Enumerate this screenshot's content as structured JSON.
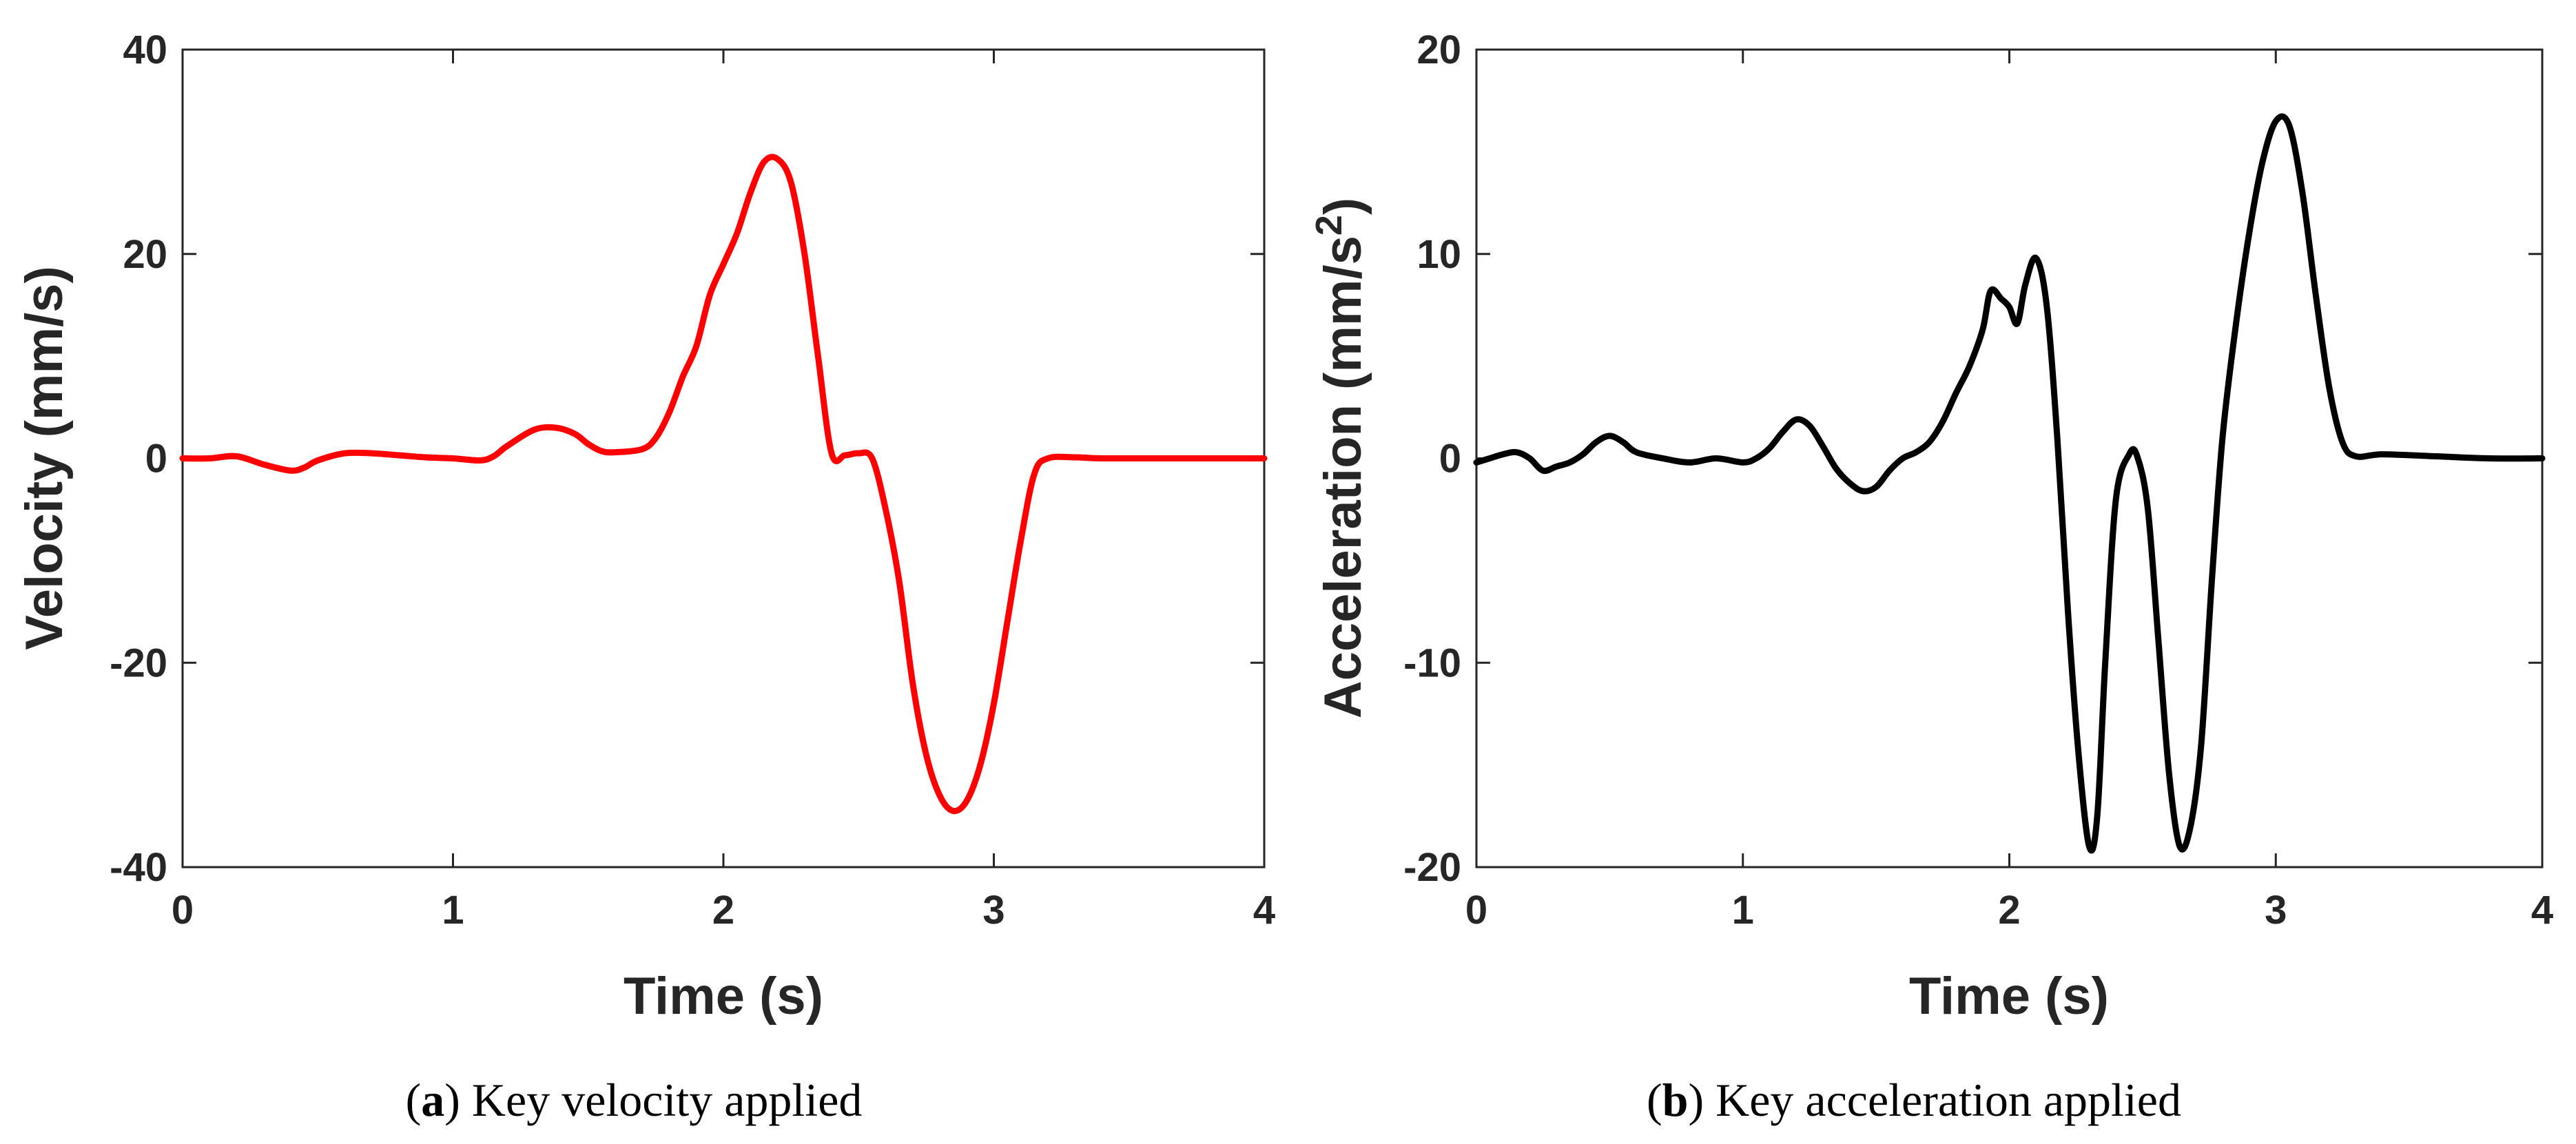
{
  "chart_data": [
    {
      "type": "line",
      "caption_letter": "a",
      "caption_text": "Key velocity applied",
      "xlabel": "Time (s)",
      "ylabel": "Velocity (mm/s)",
      "xlim": [
        0,
        4
      ],
      "ylim": [
        -40,
        40
      ],
      "xticks": [
        0,
        1,
        2,
        3,
        4
      ],
      "yticks": [
        -40,
        -20,
        0,
        20,
        40
      ],
      "grid": false,
      "series": [
        {
          "color": "#ff0000",
          "x": [
            0,
            0.1,
            0.2,
            0.3,
            0.4,
            0.45,
            0.5,
            0.6,
            0.7,
            0.8,
            0.9,
            1.0,
            1.1,
            1.15,
            1.2,
            1.3,
            1.38,
            1.45,
            1.5,
            1.55,
            1.6,
            1.7,
            1.75,
            1.8,
            1.85,
            1.9,
            1.95,
            2.0,
            2.05,
            2.1,
            2.15,
            2.2,
            2.25,
            2.3,
            2.35,
            2.4,
            2.45,
            2.5,
            2.55,
            2.6,
            2.65,
            2.7,
            2.75,
            2.8,
            2.85,
            2.9,
            2.95,
            3.0,
            3.05,
            3.1,
            3.15,
            3.2,
            3.3,
            3.4,
            3.6,
            3.8,
            4.0
          ],
          "y": [
            0,
            0,
            0.2,
            -0.6,
            -1.2,
            -0.9,
            -0.2,
            0.5,
            0.5,
            0.3,
            0.1,
            0.0,
            -0.2,
            0.2,
            1.2,
            2.8,
            3.0,
            2.4,
            1.4,
            0.7,
            0.6,
            0.9,
            2.0,
            4.5,
            8.0,
            11.0,
            16.0,
            19.0,
            22.0,
            26.0,
            29.0,
            29.3,
            27.0,
            20.0,
            10.0,
            0.5,
            0.3,
            0.5,
            0.0,
            -5.0,
            -12.0,
            -22.0,
            -29.0,
            -33.0,
            -34.5,
            -33.5,
            -30.0,
            -24.0,
            -16.0,
            -8.0,
            -1.5,
            0.0,
            0.1,
            0.0,
            0.0,
            0.0,
            0.0
          ]
        }
      ]
    },
    {
      "type": "line",
      "caption_letter": "b",
      "caption_text": "Key acceleration applied",
      "xlabel": "Time (s)",
      "ylabel_main": "Acceleration (mm/s",
      "ylabel_sup": "2",
      "ylabel_end": ")",
      "xlim": [
        0,
        4
      ],
      "ylim": [
        -20,
        20
      ],
      "xticks": [
        0,
        1,
        2,
        3,
        4
      ],
      "yticks": [
        -20,
        -10,
        0,
        10,
        20
      ],
      "grid": false,
      "series": [
        {
          "color": "#000000",
          "x": [
            0,
            0.05,
            0.1,
            0.15,
            0.2,
            0.25,
            0.3,
            0.35,
            0.4,
            0.45,
            0.5,
            0.55,
            0.6,
            0.7,
            0.8,
            0.9,
            1.0,
            1.05,
            1.1,
            1.15,
            1.2,
            1.25,
            1.3,
            1.35,
            1.4,
            1.45,
            1.5,
            1.55,
            1.6,
            1.65,
            1.7,
            1.75,
            1.8,
            1.85,
            1.9,
            1.93,
            1.97,
            2.0,
            2.03,
            2.06,
            2.1,
            2.14,
            2.18,
            2.22,
            2.26,
            2.3,
            2.33,
            2.36,
            2.4,
            2.45,
            2.48,
            2.52,
            2.56,
            2.6,
            2.64,
            2.68,
            2.72,
            2.76,
            2.8,
            2.85,
            2.9,
            2.95,
            3.0,
            3.05,
            3.1,
            3.15,
            3.2,
            3.25,
            3.3,
            3.4,
            3.6,
            3.8,
            4.0
          ],
          "y": [
            -0.2,
            0.0,
            0.2,
            0.3,
            0.0,
            -0.6,
            -0.4,
            -0.2,
            0.2,
            0.8,
            1.1,
            0.8,
            0.3,
            0.0,
            -0.2,
            0.0,
            -0.2,
            0.0,
            0.5,
            1.3,
            1.9,
            1.6,
            0.6,
            -0.5,
            -1.2,
            -1.6,
            -1.4,
            -0.6,
            0.0,
            0.3,
            0.8,
            1.8,
            3.2,
            4.5,
            6.3,
            8.2,
            7.8,
            7.4,
            6.6,
            8.5,
            9.8,
            7.5,
            1.0,
            -7.5,
            -14.5,
            -19.0,
            -17.5,
            -10.0,
            -2.0,
            0.2,
            0.1,
            -2.5,
            -9.0,
            -15.5,
            -19.0,
            -18.0,
            -14.0,
            -6.0,
            1.0,
            6.5,
            11.0,
            14.5,
            16.5,
            16.3,
            13.0,
            8.0,
            3.5,
            0.8,
            0.1,
            0.2,
            0.1,
            0.0,
            0.0
          ]
        }
      ]
    }
  ]
}
